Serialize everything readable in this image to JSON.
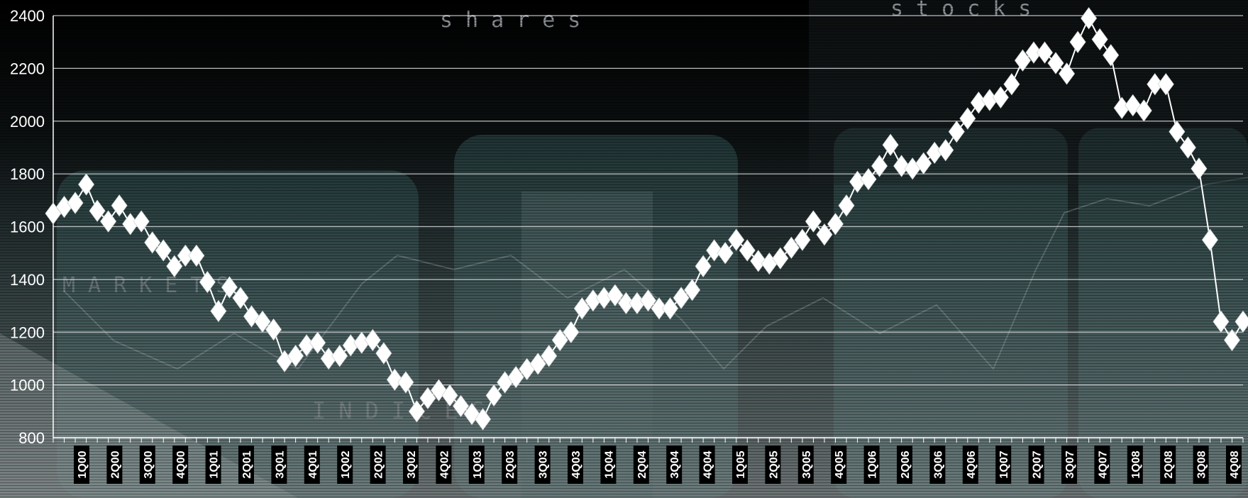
{
  "chart_data": {
    "type": "line",
    "title": "",
    "xlabel": "",
    "ylabel": "",
    "ylim": [
      800,
      2400
    ],
    "yticks": [
      800,
      1000,
      1200,
      1400,
      1600,
      1800,
      2000,
      2200,
      2400
    ],
    "grid": true,
    "legend": "none",
    "marker": "diamond",
    "line_color": "#ffffff",
    "marker_color": "#ffffff",
    "background_words": [
      "shares",
      "stocks",
      "MARKETS",
      "INDICES"
    ],
    "xtick_labels": [
      "1Q00",
      "2Q00",
      "3Q00",
      "4Q00",
      "1Q01",
      "2Q01",
      "3Q01",
      "4Q01",
      "1Q02",
      "2Q02",
      "3Q02",
      "4Q02",
      "1Q03",
      "2Q03",
      "3Q03",
      "4Q03",
      "1Q04",
      "2Q04",
      "3Q04",
      "4Q04",
      "1Q05",
      "2Q05",
      "3Q05",
      "4Q05",
      "1Q06",
      "2Q06",
      "3Q06",
      "4Q06",
      "1Q07",
      "2Q07",
      "3Q07",
      "4Q07",
      "1Q08",
      "2Q08",
      "3Q08",
      "4Q08"
    ],
    "series": [
      {
        "values": [
          1650,
          1675,
          1690,
          1760,
          1660,
          1620,
          1680,
          1610,
          1620,
          1540,
          1510,
          1450,
          1490,
          1490,
          1390,
          1280,
          1370,
          1330,
          1260,
          1240,
          1210,
          1090,
          1110,
          1150,
          1160,
          1100,
          1110,
          1150,
          1160,
          1170,
          1120,
          1020,
          1010,
          900,
          950,
          980,
          960,
          920,
          890,
          870,
          960,
          1010,
          1030,
          1060,
          1080,
          1110,
          1170,
          1200,
          1290,
          1320,
          1330,
          1340,
          1310,
          1310,
          1320,
          1290,
          1290,
          1330,
          1360,
          1450,
          1510,
          1500,
          1550,
          1510,
          1470,
          1460,
          1480,
          1520,
          1550,
          1620,
          1570,
          1610,
          1680,
          1770,
          1780,
          1830,
          1910,
          1830,
          1820,
          1840,
          1880,
          1890,
          1960,
          2010,
          2070,
          2080,
          2090,
          2140,
          2230,
          2260,
          2260,
          2220,
          2180,
          2300,
          2390,
          2310,
          2250,
          2050,
          2060,
          2040,
          2140,
          2140,
          1960,
          1900,
          1820,
          1550,
          1240,
          1170,
          1240
        ]
      }
    ]
  }
}
